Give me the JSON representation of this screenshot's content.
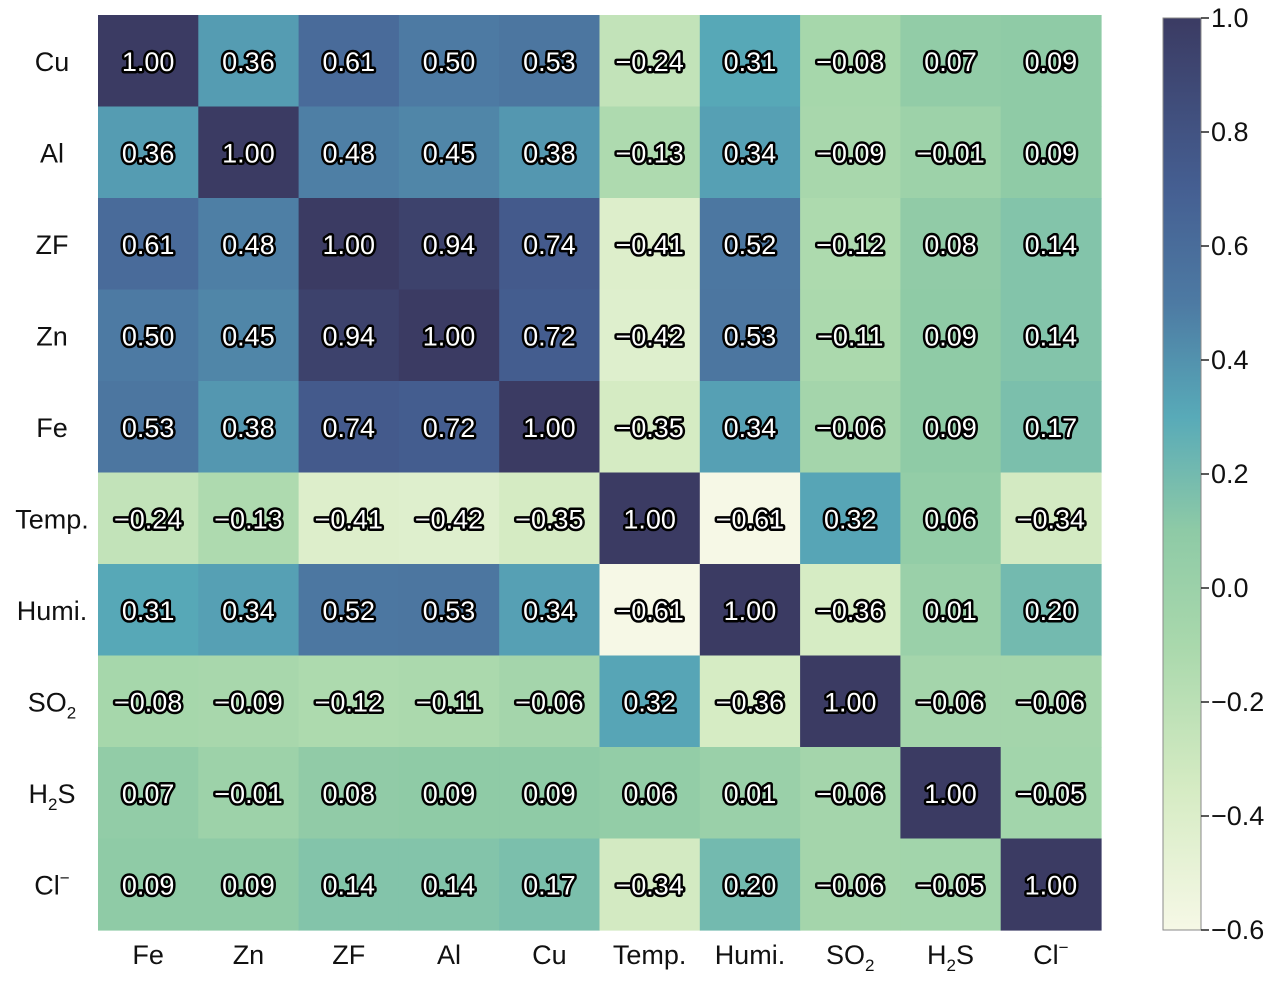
{
  "chart_data": {
    "type": "heatmap",
    "row_labels": [
      {
        "base": "Cu",
        "sub": "",
        "sup": ""
      },
      {
        "base": "Al",
        "sub": "",
        "sup": ""
      },
      {
        "base": "ZF",
        "sub": "",
        "sup": ""
      },
      {
        "base": "Zn",
        "sub": "",
        "sup": ""
      },
      {
        "base": "Fe",
        "sub": "",
        "sup": ""
      },
      {
        "base": "Temp.",
        "sub": "",
        "sup": ""
      },
      {
        "base": "Humi.",
        "sub": "",
        "sup": ""
      },
      {
        "base": "SO",
        "sub": "2",
        "sup": ""
      },
      {
        "base": "H",
        "sub": "2",
        "sup": "",
        "tail": "S"
      },
      {
        "base": "Cl",
        "sub": "",
        "sup": "−"
      }
    ],
    "col_labels": [
      {
        "base": "Fe",
        "sub": "",
        "sup": ""
      },
      {
        "base": "Zn",
        "sub": "",
        "sup": ""
      },
      {
        "base": "ZF",
        "sub": "",
        "sup": ""
      },
      {
        "base": "Al",
        "sub": "",
        "sup": ""
      },
      {
        "base": "Cu",
        "sub": "",
        "sup": ""
      },
      {
        "base": "Temp.",
        "sub": "",
        "sup": ""
      },
      {
        "base": "Humi.",
        "sub": "",
        "sup": ""
      },
      {
        "base": "SO",
        "sub": "2",
        "sup": ""
      },
      {
        "base": "H",
        "sub": "2",
        "sup": "",
        "tail": "S"
      },
      {
        "base": "Cl",
        "sub": "",
        "sup": "−"
      }
    ],
    "values": [
      [
        1.0,
        0.36,
        0.61,
        0.5,
        0.53,
        -0.24,
        0.31,
        -0.08,
        0.07,
        0.09
      ],
      [
        0.36,
        1.0,
        0.48,
        0.45,
        0.38,
        -0.13,
        0.34,
        -0.09,
        -0.01,
        0.09
      ],
      [
        0.61,
        0.48,
        1.0,
        0.94,
        0.74,
        -0.41,
        0.52,
        -0.12,
        0.08,
        0.14
      ],
      [
        0.5,
        0.45,
        0.94,
        1.0,
        0.72,
        -0.42,
        0.53,
        -0.11,
        0.09,
        0.14
      ],
      [
        0.53,
        0.38,
        0.74,
        0.72,
        1.0,
        -0.35,
        0.34,
        -0.06,
        0.09,
        0.17
      ],
      [
        -0.24,
        -0.13,
        -0.41,
        -0.42,
        -0.35,
        1.0,
        -0.61,
        0.32,
        0.06,
        -0.34
      ],
      [
        0.31,
        0.34,
        0.52,
        0.53,
        0.34,
        -0.61,
        1.0,
        -0.36,
        0.01,
        0.2
      ],
      [
        -0.08,
        -0.09,
        -0.12,
        -0.11,
        -0.06,
        0.32,
        -0.36,
        1.0,
        -0.06,
        -0.06
      ],
      [
        0.07,
        -0.01,
        0.08,
        0.09,
        0.09,
        0.06,
        0.01,
        -0.06,
        1.0,
        -0.05
      ],
      [
        0.09,
        0.09,
        0.14,
        0.14,
        0.17,
        -0.34,
        0.2,
        -0.06,
        -0.05,
        1.0
      ]
    ],
    "display_values": [
      [
        "1.00",
        "0.36",
        "0.61",
        "0.50",
        "0.53",
        "−0.24",
        "0.31",
        "−0.08",
        "0.07",
        "0.09"
      ],
      [
        "0.36",
        "1.00",
        "0.48",
        "0.45",
        "0.38",
        "−0.13",
        "0.34",
        "−0.09",
        "−0.01",
        "0.09"
      ],
      [
        "0.61",
        "0.48",
        "1.00",
        "0.94",
        "0.74",
        "−0.41",
        "0.52",
        "−0.12",
        "0.08",
        "0.14"
      ],
      [
        "0.50",
        "0.45",
        "0.94",
        "1.00",
        "0.72",
        "−0.42",
        "0.53",
        "−0.11",
        "0.09",
        "0.14"
      ],
      [
        "0.53",
        "0.38",
        "0.74",
        "0.72",
        "1.00",
        "−0.35",
        "0.34",
        "−0.06",
        "0.09",
        "0.17"
      ],
      [
        "−0.24",
        "−0.13",
        "−0.41",
        "−0.42",
        "−0.35",
        "1.00",
        "−0.61",
        "0.32",
        "0.06",
        "−0.34"
      ],
      [
        "0.31",
        "0.34",
        "0.52",
        "0.53",
        "0.34",
        "−0.61",
        "1.00",
        "−0.36",
        "0.01",
        "0.20"
      ],
      [
        "−0.08",
        "−0.09",
        "−0.12",
        "−0.11",
        "−0.06",
        "0.32",
        "−0.36",
        "1.00",
        "−0.06",
        "−0.06"
      ],
      [
        "0.07",
        "−0.01",
        "0.08",
        "0.09",
        "0.09",
        "0.06",
        "0.01",
        "−0.06",
        "1.00",
        "−0.05"
      ],
      [
        "0.09",
        "0.09",
        "0.14",
        "0.14",
        "0.17",
        "−0.34",
        "0.20",
        "−0.06",
        "−0.05",
        "1.00"
      ]
    ],
    "colorbar": {
      "min": -0.6,
      "max": 1.0,
      "ticks": [
        1.0,
        0.8,
        0.6,
        0.4,
        0.2,
        0.0,
        -0.2,
        -0.4,
        -0.6
      ],
      "tick_labels": [
        "1.0",
        "0.8",
        "0.6",
        "0.4",
        "0.2",
        "0.0",
        "−0.2",
        "−0.4",
        "−0.6"
      ],
      "colors": [
        {
          "v": -0.6,
          "c": "#f6f8e6"
        },
        {
          "v": -0.35,
          "c": "#d5ebc3"
        },
        {
          "v": -0.1,
          "c": "#a9d8ac"
        },
        {
          "v": 0.1,
          "c": "#8ecaa6"
        },
        {
          "v": 0.3,
          "c": "#58aab8"
        },
        {
          "v": 0.5,
          "c": "#4d7aa3"
        },
        {
          "v": 0.7,
          "c": "#455f92"
        },
        {
          "v": 1.0,
          "c": "#3b3b63"
        }
      ]
    }
  }
}
